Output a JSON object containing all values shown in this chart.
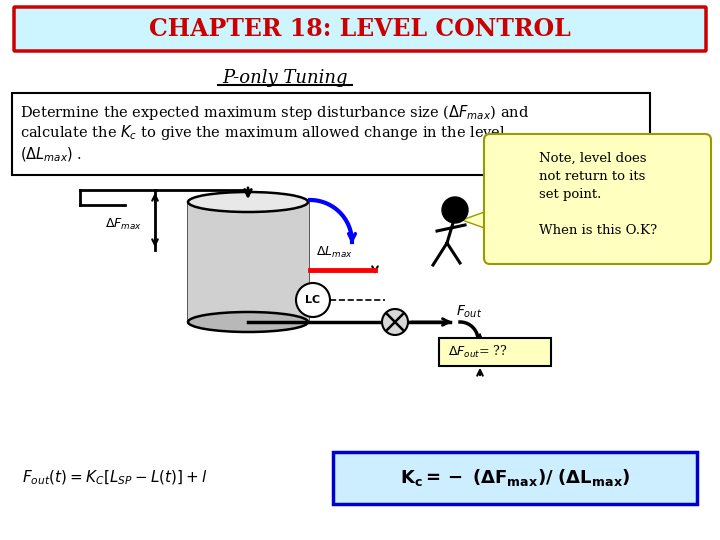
{
  "background_color": "#ffffff",
  "title_box_bg": "#ccf5ff",
  "title_box_border": "#cc0000",
  "title_text": "CHAPTER 18: LEVEL CONTROL",
  "title_color": "#cc0000",
  "subtitle_text": "P-only Tuning",
  "note_text": "Note, level does\nnot return to its\nset point.\n\nWhen is this O.K?",
  "lc_label": "LC",
  "tank_face": "#d0d0d0",
  "tank_top": "#e8e8e8",
  "tank_bottom": "#b8b8b8"
}
